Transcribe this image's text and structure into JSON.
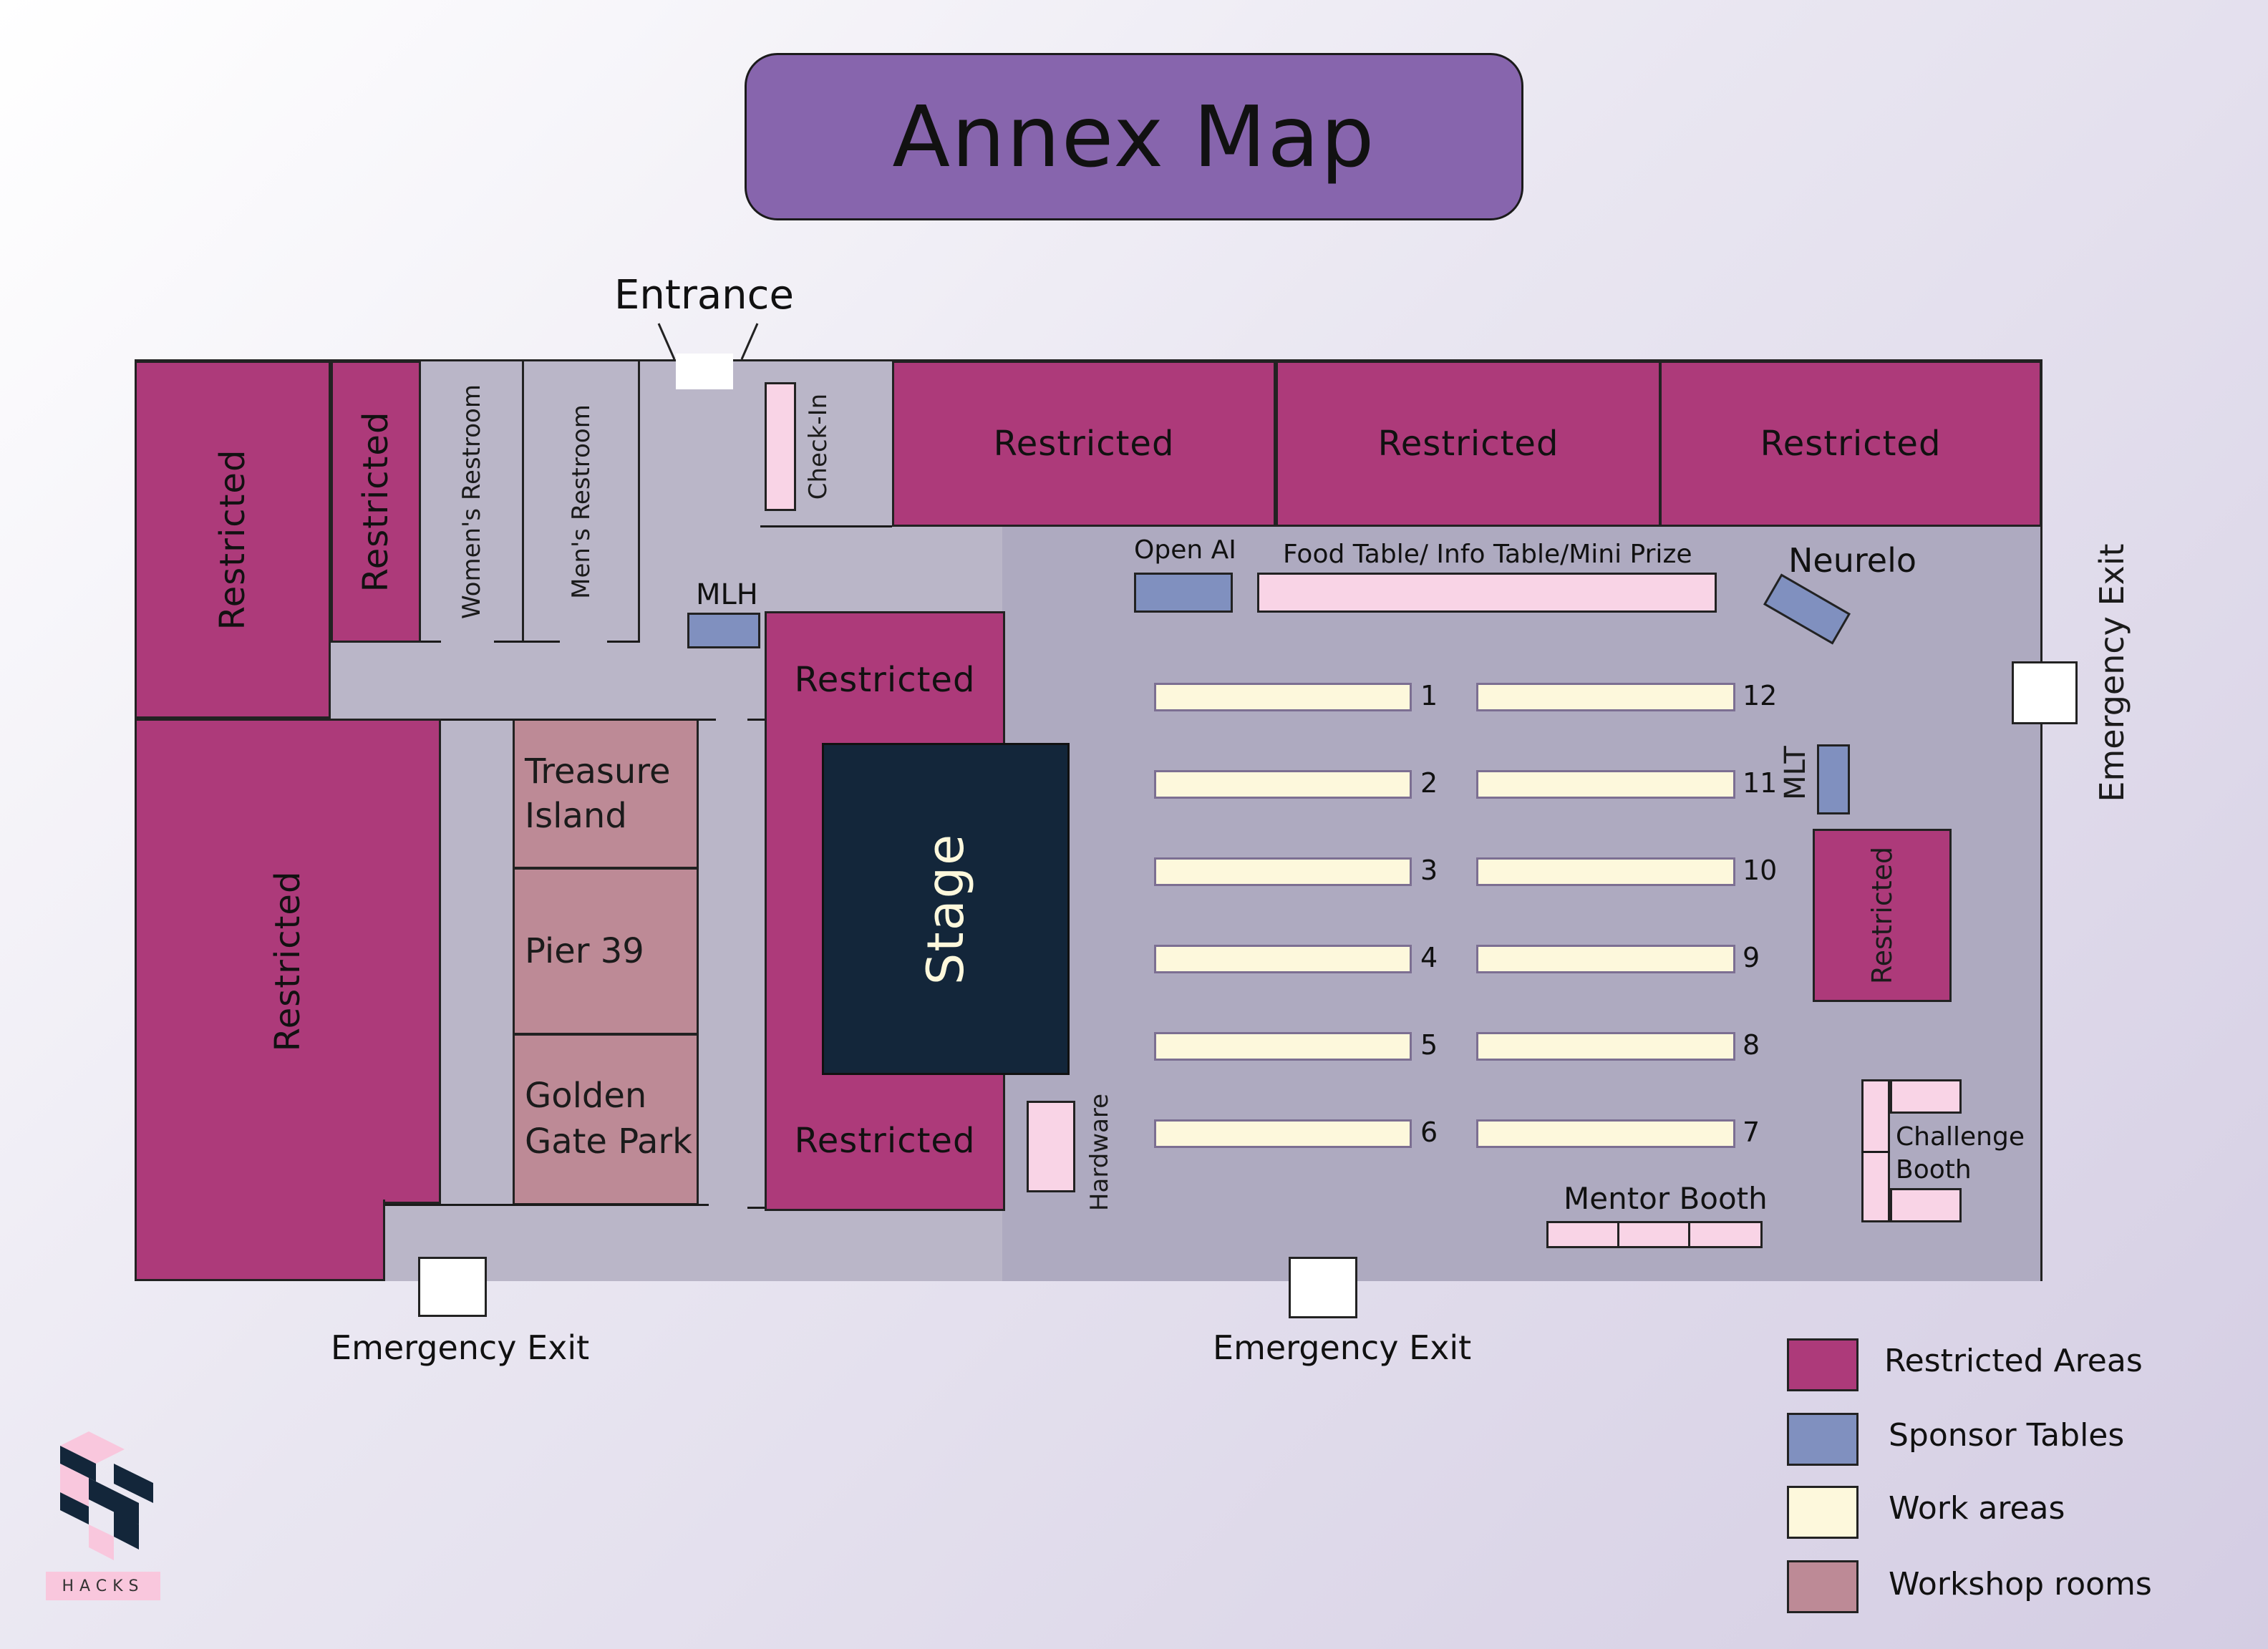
{
  "title": "Annex Map",
  "labels": {
    "entrance": "Entrance",
    "restricted": "Restricted",
    "womens_restroom": "Women's Restroom",
    "mens_restroom": "Men's Restroom",
    "check_in": "Check-In",
    "mlh": "MLH",
    "open_ai": "Open AI",
    "food_table": "Food Table/ Info Table/Mini Prize",
    "neurelo": "Neurelo",
    "mlt": "MLT",
    "stage": "Stage",
    "hardware": "Hardware",
    "mentor_booth": "Mentor Booth",
    "challenge_booth_line1": "Challenge",
    "challenge_booth_line2": "Booth",
    "emergency_exit": "Emergency Exit"
  },
  "rooms": {
    "treasure_island_line1": "Treasure",
    "treasure_island_line2": "Island",
    "pier_39": "Pier 39",
    "golden_gate_line1": "Golden",
    "golden_gate_line2": "Gate Park"
  },
  "tables": {
    "left": [
      "1",
      "2",
      "3",
      "4",
      "5",
      "6"
    ],
    "right": [
      "12",
      "11",
      "10",
      "9",
      "8",
      "7"
    ]
  },
  "legend": [
    {
      "label": "Restricted Areas",
      "color": "#ad3a7a"
    },
    {
      "label": "Sponsor Tables",
      "color": "#8090bf"
    },
    {
      "label": "Work areas",
      "color": "#fdf8dc"
    },
    {
      "label": "Workshop rooms",
      "color": "#bd8a96"
    }
  ],
  "logo": {
    "text": "HACKS",
    "mark": "SF"
  },
  "colors": {
    "restricted": "#ad3a7a",
    "sponsor": "#8090bf",
    "work": "#fdf8dc",
    "workshop": "#bd8a96",
    "stage": "#13263a",
    "title_bg": "#8765ad"
  }
}
